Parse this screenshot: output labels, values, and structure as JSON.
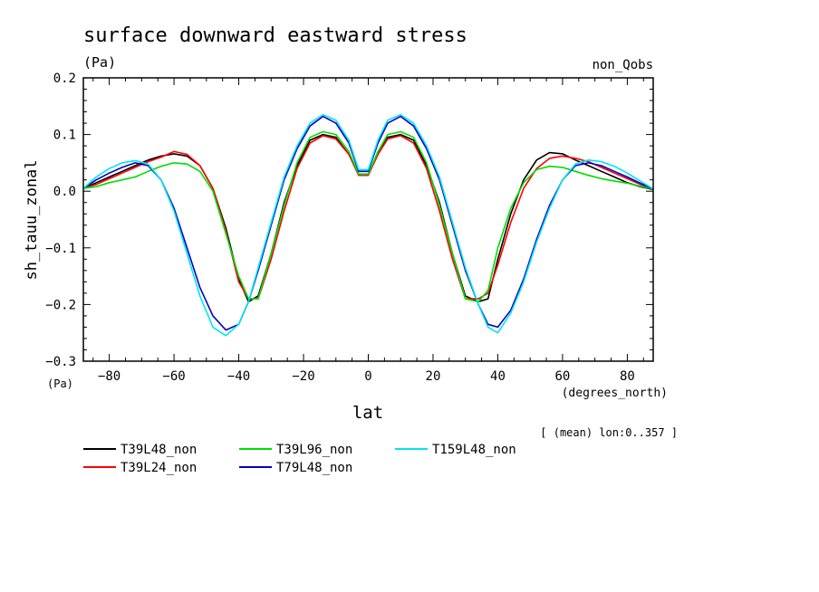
{
  "chart_data": {
    "type": "line",
    "title": "surface downward eastward stress",
    "units_left": "(Pa)",
    "label_right": "non_Qobs",
    "ylabel": "sh_tauu_zonal",
    "xlabel": "lat",
    "x_units": "(degrees_north)",
    "y_units": "(Pa)",
    "footnote": "[ (mean) lon:0..357 ]",
    "xlim": [
      -88,
      88
    ],
    "ylim": [
      -0.3,
      0.2
    ],
    "x_ticks": [
      -80,
      -60,
      -40,
      -20,
      0,
      20,
      40,
      60,
      80
    ],
    "x_tick_labels": [
      "−80",
      "−60",
      "−40",
      "−20",
      "0",
      "20",
      "40",
      "60",
      "80"
    ],
    "y_ticks": [
      -0.3,
      -0.2,
      -0.1,
      0.0,
      0.1,
      0.2
    ],
    "y_tick_labels": [
      "−0.3",
      "−0.2",
      "−0.1",
      "0.0",
      "0.1",
      "0.2"
    ],
    "series": [
      {
        "name": "T39L48_non",
        "color": "#000000",
        "x": [
          -88,
          -84,
          -80,
          -76,
          -72,
          -68,
          -64,
          -60,
          -56,
          -52,
          -48,
          -44,
          -40,
          -37,
          -34,
          -30,
          -26,
          -22,
          -18,
          -14,
          -10,
          -6,
          -3,
          0,
          3,
          6,
          10,
          14,
          18,
          22,
          26,
          30,
          34,
          37,
          40,
          44,
          48,
          52,
          56,
          60,
          64,
          68,
          72,
          76,
          80,
          84,
          88
        ],
        "y": [
          0.005,
          0.015,
          0.025,
          0.035,
          0.045,
          0.055,
          0.062,
          0.066,
          0.062,
          0.045,
          0.005,
          -0.065,
          -0.155,
          -0.195,
          -0.185,
          -0.11,
          -0.02,
          0.045,
          0.09,
          0.1,
          0.095,
          0.065,
          0.03,
          0.03,
          0.065,
          0.095,
          0.1,
          0.09,
          0.045,
          -0.02,
          -0.11,
          -0.185,
          -0.195,
          -0.19,
          -0.12,
          -0.04,
          0.02,
          0.055,
          0.068,
          0.066,
          0.055,
          0.045,
          0.035,
          0.025,
          0.015,
          0.008,
          0.003
        ]
      },
      {
        "name": "T39L24_non",
        "color": "#ff0000",
        "x": [
          -88,
          -84,
          -80,
          -76,
          -72,
          -68,
          -64,
          -60,
          -56,
          -52,
          -48,
          -44,
          -40,
          -37,
          -34,
          -30,
          -26,
          -22,
          -18,
          -14,
          -10,
          -6,
          -3,
          0,
          3,
          6,
          10,
          14,
          18,
          22,
          26,
          30,
          34,
          37,
          40,
          44,
          48,
          52,
          56,
          60,
          64,
          68,
          72,
          76,
          80,
          84,
          88
        ],
        "y": [
          0.005,
          0.012,
          0.022,
          0.032,
          0.042,
          0.052,
          0.06,
          0.07,
          0.065,
          0.045,
          0.005,
          -0.07,
          -0.16,
          -0.19,
          -0.19,
          -0.12,
          -0.035,
          0.04,
          0.085,
          0.098,
          0.092,
          0.065,
          0.028,
          0.028,
          0.065,
          0.092,
          0.098,
          0.085,
          0.04,
          -0.035,
          -0.12,
          -0.19,
          -0.19,
          -0.18,
          -0.13,
          -0.055,
          0.005,
          0.04,
          0.058,
          0.062,
          0.058,
          0.052,
          0.042,
          0.032,
          0.022,
          0.012,
          0.004
        ]
      },
      {
        "name": "T39L96_non",
        "color": "#00dd00",
        "x": [
          -88,
          -84,
          -80,
          -76,
          -72,
          -68,
          -64,
          -60,
          -56,
          -52,
          -48,
          -44,
          -40,
          -37,
          -34,
          -30,
          -26,
          -22,
          -18,
          -14,
          -10,
          -6,
          -3,
          0,
          3,
          6,
          10,
          14,
          18,
          22,
          26,
          30,
          34,
          37,
          40,
          44,
          48,
          52,
          56,
          60,
          64,
          68,
          72,
          76,
          80,
          84,
          88
        ],
        "y": [
          0.005,
          0.008,
          0.015,
          0.02,
          0.025,
          0.035,
          0.044,
          0.05,
          0.048,
          0.035,
          0.0,
          -0.075,
          -0.15,
          -0.19,
          -0.19,
          -0.11,
          -0.025,
          0.05,
          0.095,
          0.105,
          0.1,
          0.07,
          0.03,
          0.03,
          0.07,
          0.1,
          0.105,
          0.095,
          0.05,
          -0.025,
          -0.11,
          -0.19,
          -0.195,
          -0.175,
          -0.1,
          -0.03,
          0.015,
          0.038,
          0.044,
          0.042,
          0.035,
          0.028,
          0.022,
          0.018,
          0.014,
          0.009,
          0.004
        ]
      },
      {
        "name": "T79L48_non",
        "color": "#0000cc",
        "x": [
          -88,
          -84,
          -80,
          -76,
          -72,
          -68,
          -64,
          -60,
          -56,
          -52,
          -48,
          -44,
          -40,
          -37,
          -34,
          -30,
          -26,
          -22,
          -18,
          -14,
          -10,
          -6,
          -3,
          0,
          3,
          6,
          10,
          14,
          18,
          22,
          26,
          30,
          34,
          37,
          40,
          44,
          48,
          52,
          56,
          60,
          64,
          68,
          72,
          76,
          80,
          84,
          88
        ],
        "y": [
          0.005,
          0.02,
          0.032,
          0.042,
          0.05,
          0.045,
          0.02,
          -0.03,
          -0.1,
          -0.17,
          -0.22,
          -0.245,
          -0.235,
          -0.195,
          -0.14,
          -0.06,
          0.02,
          0.075,
          0.115,
          0.132,
          0.12,
          0.085,
          0.035,
          0.035,
          0.085,
          0.12,
          0.132,
          0.115,
          0.075,
          0.02,
          -0.06,
          -0.14,
          -0.2,
          -0.235,
          -0.24,
          -0.21,
          -0.155,
          -0.085,
          -0.025,
          0.02,
          0.045,
          0.05,
          0.045,
          0.035,
          0.025,
          0.014,
          0.004
        ]
      },
      {
        "name": "T159L48_non",
        "color": "#00e5ee",
        "x": [
          -88,
          -84,
          -80,
          -76,
          -72,
          -68,
          -64,
          -60,
          -56,
          -52,
          -48,
          -44,
          -40,
          -37,
          -34,
          -30,
          -26,
          -22,
          -18,
          -14,
          -10,
          -6,
          -3,
          0,
          3,
          6,
          10,
          14,
          18,
          22,
          26,
          30,
          34,
          37,
          40,
          44,
          48,
          52,
          56,
          60,
          64,
          68,
          72,
          76,
          80,
          84,
          88
        ],
        "y": [
          0.005,
          0.025,
          0.04,
          0.05,
          0.054,
          0.048,
          0.02,
          -0.035,
          -0.11,
          -0.185,
          -0.24,
          -0.255,
          -0.235,
          -0.195,
          -0.135,
          -0.055,
          0.025,
          0.08,
          0.12,
          0.135,
          0.125,
          0.09,
          0.038,
          0.038,
          0.09,
          0.125,
          0.135,
          0.12,
          0.08,
          0.025,
          -0.055,
          -0.135,
          -0.2,
          -0.24,
          -0.25,
          -0.215,
          -0.16,
          -0.09,
          -0.03,
          0.02,
          0.048,
          0.055,
          0.052,
          0.044,
          0.032,
          0.018,
          0.004
        ]
      }
    ]
  }
}
